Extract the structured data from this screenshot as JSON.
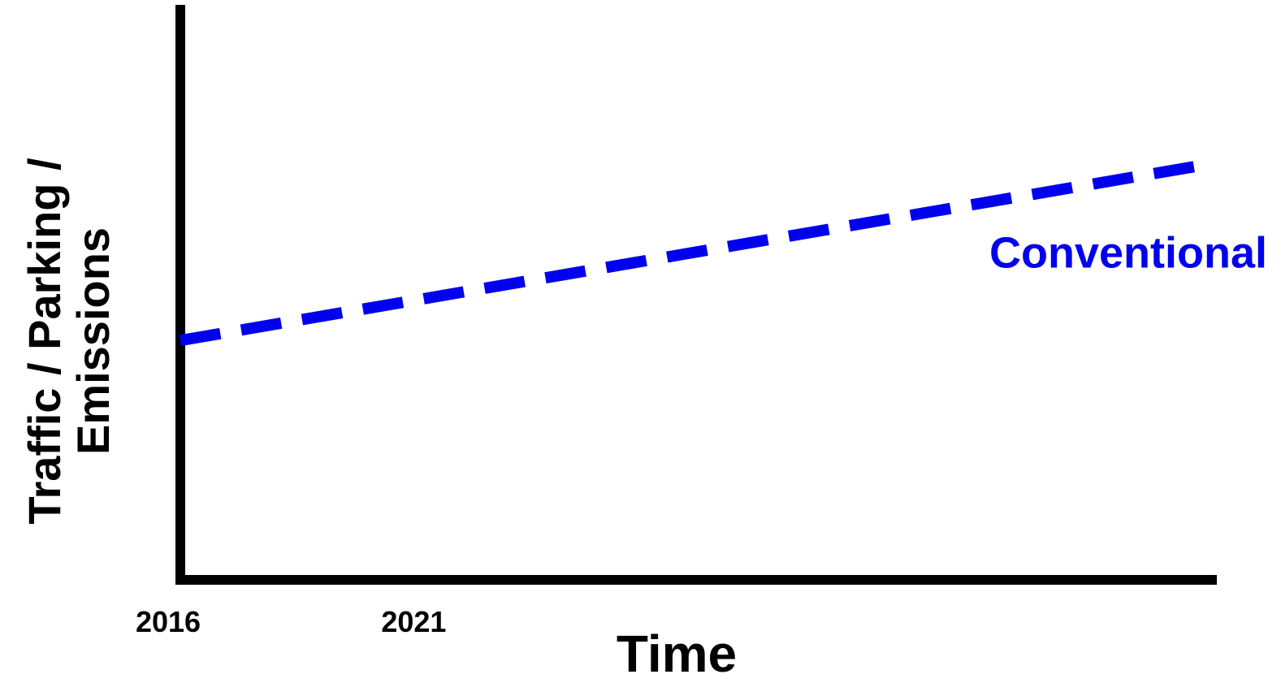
{
  "chart_data": {
    "type": "line",
    "title": "",
    "xlabel": "Time",
    "ylabel": [
      "Traffic / Parking /",
      "Emissions"
    ],
    "x_ticks": [
      {
        "value": 2016,
        "label": "2016"
      },
      {
        "value": 2021,
        "label": "2021"
      }
    ],
    "xlim": [
      2016,
      2037
    ],
    "ylim": [
      0,
      100
    ],
    "grid": false,
    "series": [
      {
        "name": "Conventional",
        "style": "dashed",
        "color": "#0000ee",
        "x": [
          2016,
          2037
        ],
        "y": [
          42,
          73
        ]
      }
    ]
  }
}
